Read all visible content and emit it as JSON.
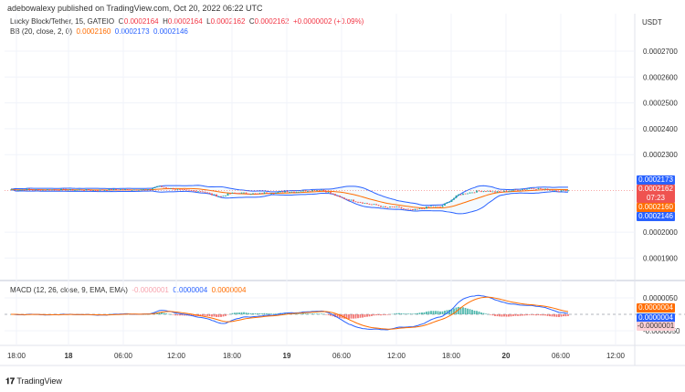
{
  "header": {
    "published": "adebowalexy published on TradingView.com, Oct 20, 2022 06:22 UTC"
  },
  "legend": {
    "symbol": "Lucky Block/Tether, 15, GATEIO",
    "o_label": "O",
    "o": "0.0002164",
    "h_label": "H",
    "h": "0.0002164",
    "l_label": "L",
    "l": "0.0002162",
    "c_label": "C",
    "c": "0.0002162",
    "change": "+0.0000002 (+0.09%)",
    "bb_label": "BB (20, close, 2, 0)",
    "bb_basis": "0.0002160",
    "bb_upper": "0.0002173",
    "bb_lower": "0.0002146",
    "macd_label": "MACD (12, 26, close, 9, EMA, EMA)",
    "macd_hist": "-0.0000001",
    "macd_line": "0.0000004",
    "macd_signal": "0.0000004"
  },
  "price_axis": {
    "currency": "USDT",
    "ticks": [
      "0.0002700",
      "0.0002600",
      "0.0002500",
      "0.0002400",
      "0.0002300",
      "0.0002000",
      "0.0001900"
    ],
    "tags": {
      "upper": "0.0002173",
      "last": "0.0002162",
      "countdown": "07:23",
      "basis": "0.0002160",
      "lower": "0.0002146"
    }
  },
  "macd_axis": {
    "ticks": [
      "0.0000050",
      "-0.0000050"
    ],
    "tags": {
      "signal": "0.0000004",
      "macd": "0.0000004",
      "hist": "-0.0000001"
    }
  },
  "time_axis": {
    "ticks": [
      "18:00",
      "18",
      "06:00",
      "12:00",
      "18:00",
      "19",
      "06:00",
      "12:00",
      "18:00",
      "20",
      "06:00",
      "12:00"
    ]
  },
  "colors": {
    "up": "#26a69a",
    "down": "#ef5350",
    "bb_band": "#2962ff",
    "bb_basis": "#ff6d00",
    "macd": "#2962ff",
    "signal": "#ff6d00"
  },
  "footer": {
    "brand": "TradingView"
  },
  "chart_data": {
    "type": "candlestick",
    "interval": "15",
    "unit": "close price, USDT (x 0.0000001)",
    "start": "Oct 17 17:00",
    "step": "1h",
    "hourly_close": [
      2165,
      2164,
      2166,
      2163,
      2164,
      2165,
      2164,
      2163,
      2164,
      2162,
      2163,
      2164,
      2165,
      2164,
      2166,
      2163,
      2178,
      2172,
      2166,
      2162,
      2160,
      2158,
      2145,
      2138,
      2150,
      2152,
      2150,
      2148,
      2153,
      2152,
      2158,
      2156,
      2160,
      2162,
      2164,
      2150,
      2135,
      2125,
      2118,
      2110,
      2105,
      2095,
      2098,
      2090,
      2085,
      2092,
      2100,
      2098,
      2120,
      2145,
      2152,
      2158,
      2160,
      2155,
      2158,
      2162,
      2166,
      2170,
      2168,
      2164,
      2160,
      2162
    ],
    "ylim": [
      0.000185,
      0.000275
    ],
    "indicators": [
      "Bollinger Bands (20, 2)",
      "MACD (12, 26, 9)"
    ]
  }
}
